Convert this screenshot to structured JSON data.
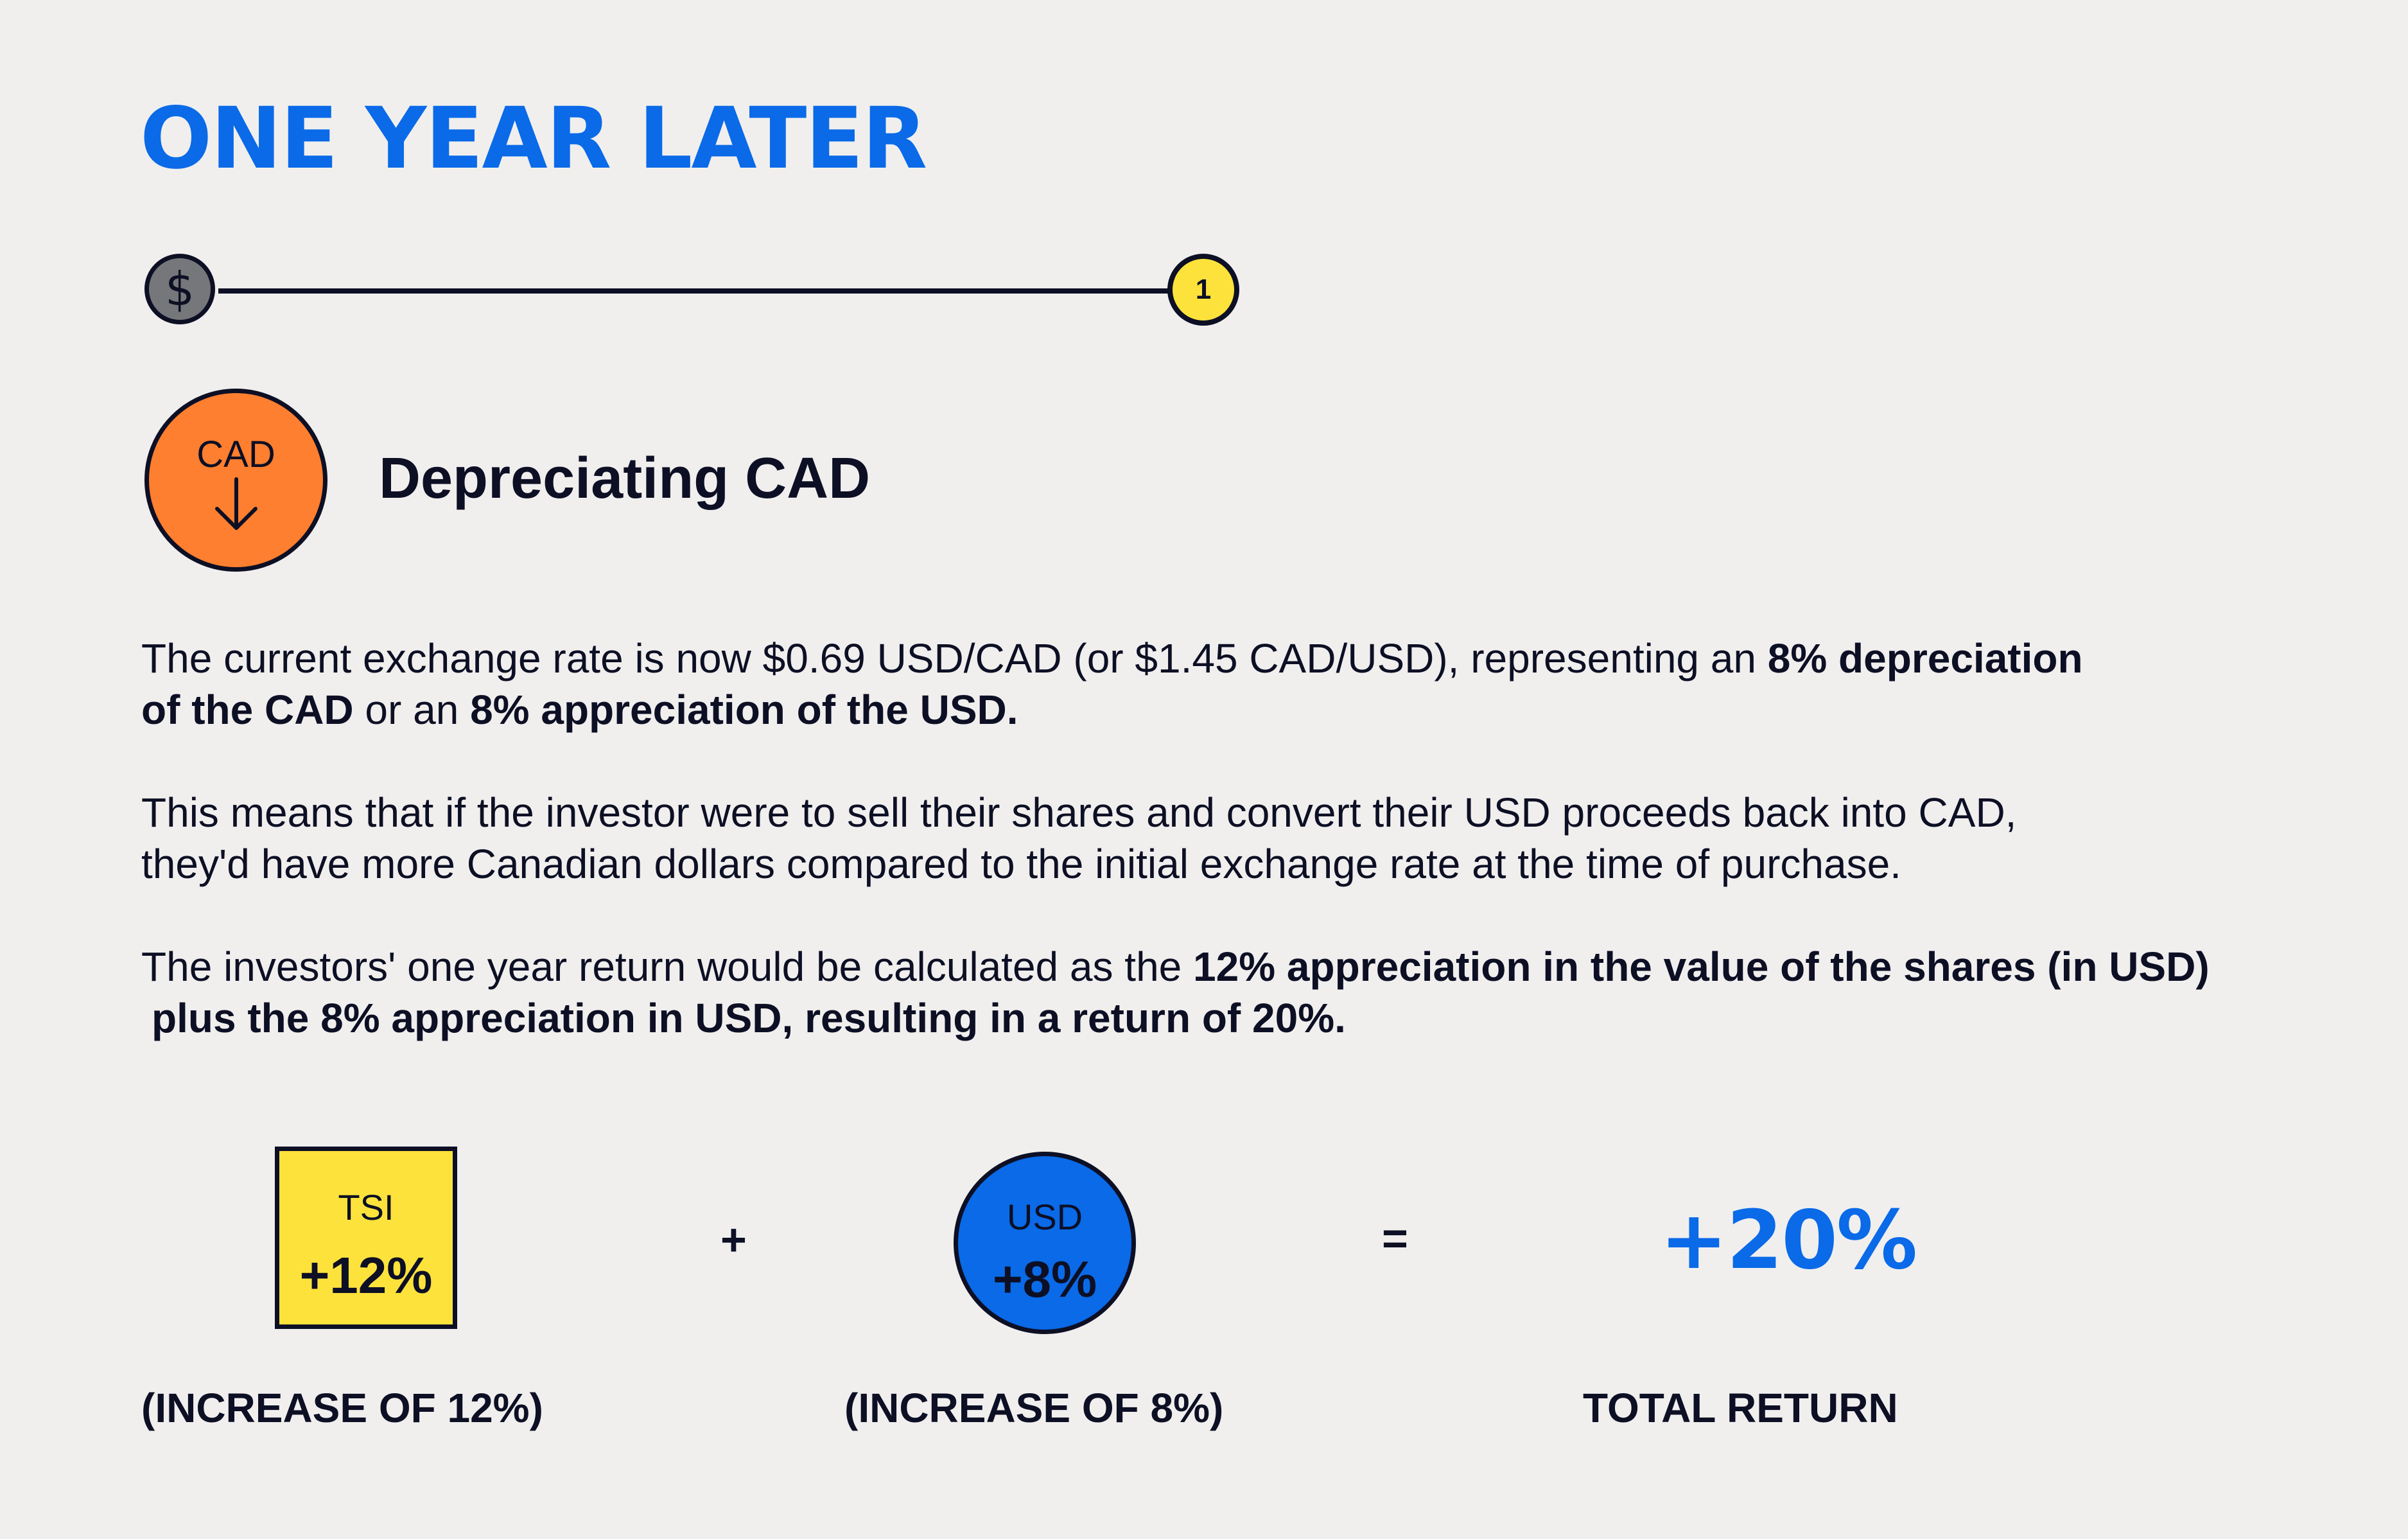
{
  "title": "ONE YEAR LATER",
  "timeline": {
    "start_icon": "dollar-icon",
    "start_symbol": "$",
    "end_label": "1"
  },
  "section": {
    "badge_label": "CAD",
    "badge_icon": "arrow-down-icon",
    "heading": "Depreciating CAD"
  },
  "paragraphs": {
    "p1": {
      "line1_text": "The current exchange rate is now $0.69 USD/CAD (or $1.45 CAD/USD), representing an ",
      "line1_bold": "8% depreciation",
      "line2_bold1": "of the CAD",
      "line2_text": " or an ",
      "line2_bold2": "8% appreciation of the USD."
    },
    "p2": {
      "line1": "This means that if the investor were to sell their shares and convert their USD proceeds back into CAD,",
      "line2": "they'd have more Canadian dollars compared to the initial exchange rate at the time of purchase."
    },
    "p3": {
      "line1_text": "The investors' one year return would be calculated as the ",
      "line1_bold": "12% appreciation in the value of the shares (in USD)",
      "line2_bold": "plus the 8% appreciation in USD, resulting in a return of 20%."
    }
  },
  "equation": {
    "tsi_label": "TSI",
    "tsi_value": "+12%",
    "plus": "+",
    "usd_label": "USD",
    "usd_value": "+8%",
    "equals": "=",
    "total": "+20%"
  },
  "captions": {
    "tsi": "(INCREASE OF 12%)",
    "usd": "(INCREASE OF 8%)",
    "total": "TOTAL RETURN"
  },
  "colors": {
    "accent_blue": "#0a6ae8",
    "yellow": "#fde23c",
    "orange": "#fe7f2f",
    "gray": "#76777a",
    "ink": "#0d0f24",
    "background": "#f0efee"
  }
}
